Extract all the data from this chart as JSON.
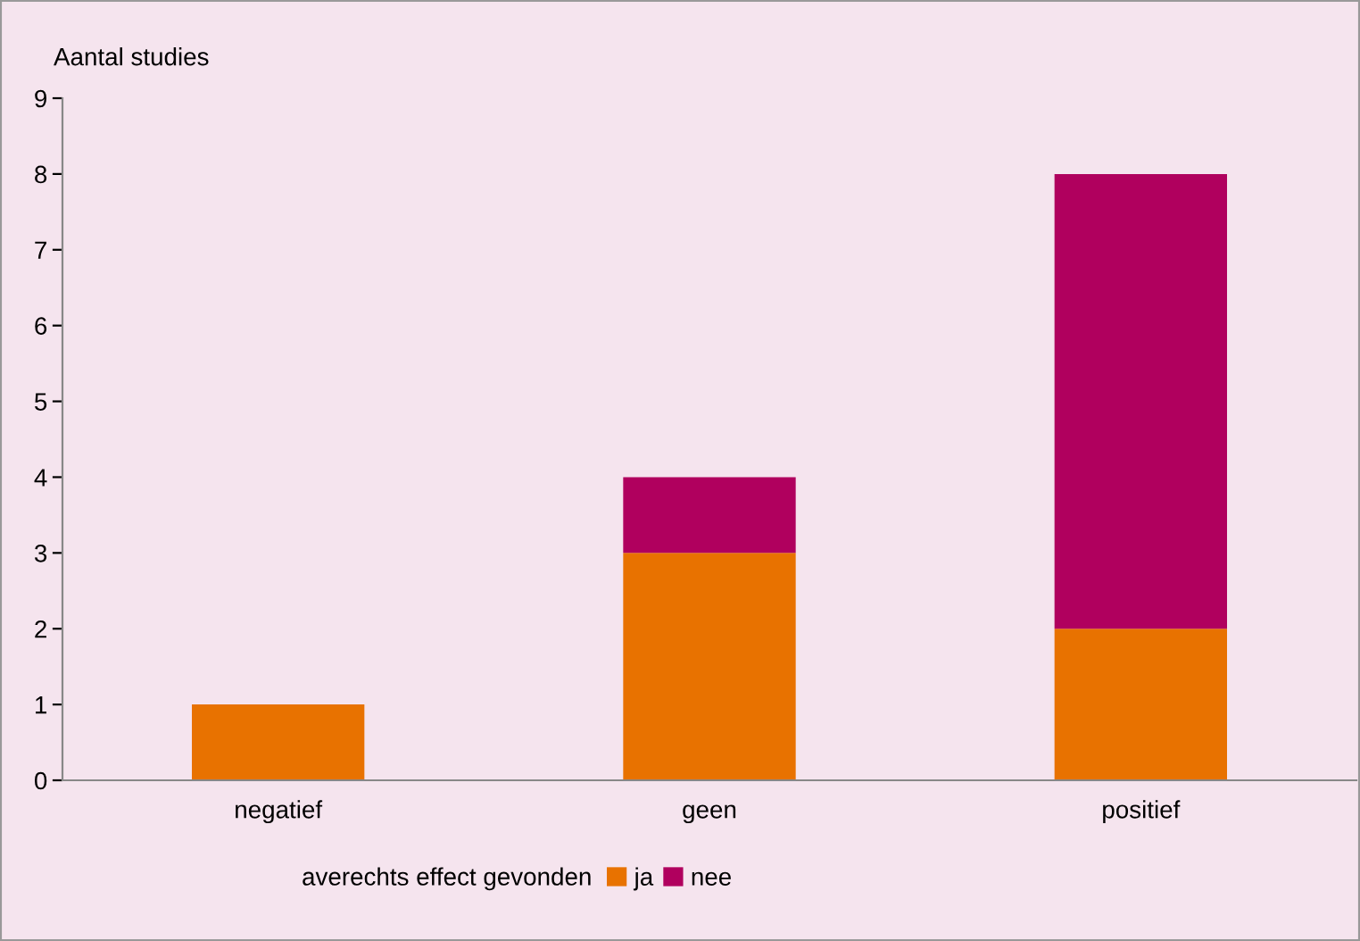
{
  "chart_data": {
    "type": "bar",
    "stacked": true,
    "ylabel": "Aantal studies",
    "legend_title": "averechts effect gevonden",
    "categories": [
      "negatief",
      "geen",
      "positief"
    ],
    "series": [
      {
        "name": "ja",
        "color": "#e87200",
        "values": [
          1,
          3,
          2
        ]
      },
      {
        "name": "nee",
        "color": "#b0005e",
        "values": [
          0,
          1,
          6
        ]
      }
    ],
    "ylim": [
      0,
      9
    ],
    "yticks": [
      0,
      1,
      2,
      3,
      4,
      5,
      6,
      7,
      8,
      9
    ],
    "grid": false,
    "legend": "bottom"
  }
}
